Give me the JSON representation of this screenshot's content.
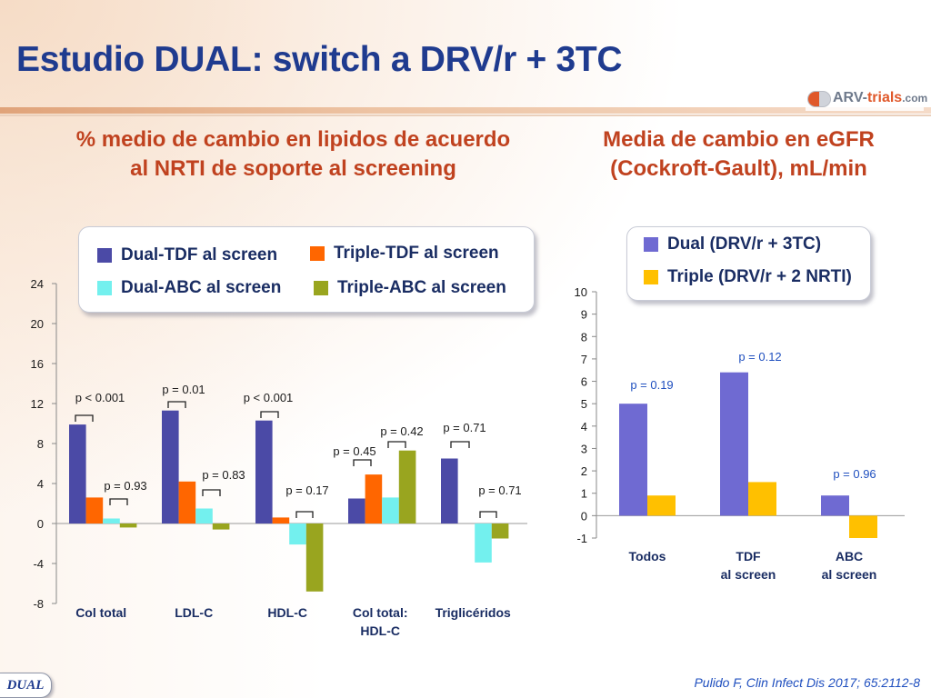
{
  "title": "Estudio DUAL: switch a DRV/r + 3TC",
  "logo": {
    "text_main": "ARV-",
    "text_accent": "trials",
    "text_domain": ".com"
  },
  "left_panel": {
    "subtitle_line1": "% medio de cambio en lipidos de acuerdo",
    "subtitle_line2": "al NRTI de soporte al screening",
    "legend": [
      {
        "label": "Dual-TDF al screen",
        "color": "#4b4aa6"
      },
      {
        "label": "Triple-TDF al screen",
        "color": "#ff6600"
      },
      {
        "label": "Dual-ABC al screen",
        "color": "#73f0ee"
      },
      {
        "label": "Triple-ABC al screen",
        "color": "#99a51f"
      }
    ]
  },
  "right_panel": {
    "subtitle_line1": "Media de cambio en eGFR",
    "subtitle_line2": "(Cockroft-Gault), mL/min",
    "legend": [
      {
        "label": "Dual (DRV/r + 3TC)",
        "color": "#6f6ad2"
      },
      {
        "label": "Triple (DRV/r + 2 NRTI)",
        "color": "#ffc000"
      }
    ]
  },
  "chart_data": [
    {
      "type": "bar",
      "title": "% medio de cambio en lipidos de acuerdo al NRTI de soporte al screening",
      "categories": [
        "Col total",
        "LDL-C",
        "HDL-C",
        "Col total: HDL-C",
        "Triglicéridos"
      ],
      "category_lines": [
        [
          "Col total"
        ],
        [
          "LDL-C"
        ],
        [
          "HDL-C"
        ],
        [
          "Col total:",
          "HDL-C"
        ],
        [
          "Triglicéridos"
        ]
      ],
      "series": [
        {
          "name": "Dual-TDF al screen",
          "color": "#4b4aa6",
          "values": [
            9.9,
            11.3,
            10.3,
            2.5,
            6.5
          ]
        },
        {
          "name": "Triple-TDF al screen",
          "color": "#ff6600",
          "values": [
            2.6,
            4.2,
            0.6,
            4.9,
            null
          ]
        },
        {
          "name": "Dual-ABC al screen",
          "color": "#73f0ee",
          "values": [
            0.5,
            1.5,
            -2.1,
            2.6,
            -3.9
          ]
        },
        {
          "name": "Triple-ABC al screen",
          "color": "#99a51f",
          "values": [
            -0.4,
            -0.6,
            -6.8,
            7.3,
            -1.5
          ]
        }
      ],
      "ylim": [
        -8,
        24
      ],
      "yticks": [
        -8,
        -4,
        0,
        4,
        8,
        12,
        16,
        20,
        24
      ],
      "annotations": [
        {
          "text": "p < 0.001",
          "category": 0,
          "pair": "TDF"
        },
        {
          "text": "p = 0.93",
          "category": 0,
          "pair": "ABC"
        },
        {
          "text": "p = 0.01",
          "category": 1,
          "pair": "TDF"
        },
        {
          "text": "p = 0.83",
          "category": 1,
          "pair": "ABC"
        },
        {
          "text": "p < 0.001",
          "category": 2,
          "pair": "TDF"
        },
        {
          "text": "p = 0.17",
          "category": 2,
          "pair": "ABC"
        },
        {
          "text": "p = 0.45",
          "category": 3,
          "pair": "TDF"
        },
        {
          "text": "p = 0.42",
          "category": 3,
          "pair": "ABC"
        },
        {
          "text": "p = 0.71",
          "category": 4,
          "pair": "TDF"
        },
        {
          "text": "p = 0.71",
          "category": 4,
          "pair": "ABC"
        }
      ]
    },
    {
      "type": "bar",
      "title": "Media de cambio en eGFR (Cockroft-Gault), mL/min",
      "categories": [
        "Todos",
        "TDF al screen",
        "ABC al screen"
      ],
      "category_lines": [
        [
          "Todos"
        ],
        [
          "TDF",
          "al screen"
        ],
        [
          "ABC",
          "al screen"
        ]
      ],
      "series": [
        {
          "name": "Dual (DRV/r + 3TC)",
          "color": "#6f6ad2",
          "values": [
            5.0,
            6.4,
            0.9
          ]
        },
        {
          "name": "Triple (DRV/r + 2 NRTI)",
          "color": "#ffc000",
          "values": [
            0.9,
            1.5,
            -1.0
          ]
        }
      ],
      "ylim": [
        -1,
        10
      ],
      "yticks": [
        -1,
        0,
        1,
        2,
        3,
        4,
        5,
        6,
        7,
        8,
        9,
        10
      ],
      "annotations": [
        {
          "text": "p = 0.19",
          "category": 0
        },
        {
          "text": "p = 0.12",
          "category": 1
        },
        {
          "text": "p = 0.96",
          "category": 2
        }
      ]
    }
  ],
  "footer": {
    "tag": "DUAL",
    "citation": "Pulido F, Clin Infect Dis 2017; 65:2112-8"
  }
}
